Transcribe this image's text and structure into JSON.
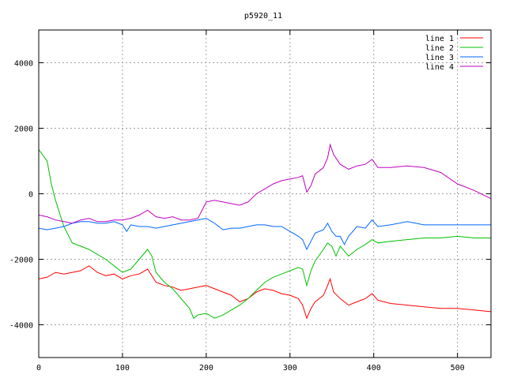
{
  "chart_data": {
    "type": "line",
    "title": "p5920_11",
    "xlabel": "",
    "ylabel": "",
    "xlim": [
      0,
      540
    ],
    "ylim": [
      -5000,
      5000
    ],
    "x_ticks": [
      0,
      100,
      200,
      300,
      400,
      500
    ],
    "y_ticks": [
      -4000,
      -2000,
      0,
      2000,
      4000
    ],
    "grid": true,
    "legend_position": "top-right",
    "series": [
      {
        "name": "line 1",
        "color": "#ff0000",
        "x": [
          0,
          10,
          20,
          30,
          40,
          50,
          60,
          70,
          80,
          90,
          100,
          110,
          120,
          130,
          140,
          150,
          160,
          170,
          180,
          190,
          200,
          210,
          220,
          230,
          240,
          250,
          260,
          270,
          280,
          290,
          300,
          310,
          315,
          320,
          325,
          330,
          340,
          345,
          348,
          352,
          360,
          370,
          380,
          390,
          398,
          405,
          420,
          440,
          460,
          480,
          500,
          520,
          540
        ],
        "y": [
          -2600,
          -2550,
          -2400,
          -2450,
          -2400,
          -2350,
          -2200,
          -2400,
          -2500,
          -2450,
          -2600,
          -2500,
          -2450,
          -2300,
          -2700,
          -2800,
          -2850,
          -2950,
          -2900,
          -2850,
          -2800,
          -2900,
          -3000,
          -3100,
          -3300,
          -3200,
          -3000,
          -2900,
          -2950,
          -3050,
          -3100,
          -3200,
          -3400,
          -3800,
          -3500,
          -3300,
          -3100,
          -2800,
          -2600,
          -3000,
          -3200,
          -3400,
          -3300,
          -3200,
          -3050,
          -3250,
          -3350,
          -3400,
          -3450,
          -3500,
          -3500,
          -3550,
          -3600
        ]
      },
      {
        "name": "line 2",
        "color": "#00c000",
        "x": [
          0,
          10,
          15,
          20,
          30,
          40,
          50,
          60,
          70,
          80,
          90,
          100,
          110,
          120,
          130,
          135,
          140,
          150,
          160,
          170,
          180,
          185,
          190,
          200,
          210,
          220,
          230,
          240,
          250,
          260,
          270,
          280,
          290,
          300,
          310,
          315,
          320,
          325,
          330,
          340,
          345,
          350,
          355,
          360,
          370,
          380,
          390,
          398,
          405,
          420,
          440,
          460,
          480,
          500,
          520,
          540
        ],
        "y": [
          1350,
          1000,
          300,
          -200,
          -1000,
          -1500,
          -1600,
          -1700,
          -1850,
          -2000,
          -2200,
          -2400,
          -2300,
          -2000,
          -1700,
          -1900,
          -2400,
          -2700,
          -2900,
          -3200,
          -3500,
          -3800,
          -3700,
          -3650,
          -3800,
          -3700,
          -3550,
          -3400,
          -3200,
          -2950,
          -2700,
          -2550,
          -2450,
          -2350,
          -2250,
          -2300,
          -2800,
          -2350,
          -2050,
          -1700,
          -1500,
          -1600,
          -1900,
          -1600,
          -1900,
          -1700,
          -1550,
          -1400,
          -1500,
          -1450,
          -1400,
          -1350,
          -1350,
          -1300,
          -1350,
          -1350
        ]
      },
      {
        "name": "line 3",
        "color": "#0066ff",
        "x": [
          0,
          10,
          20,
          30,
          40,
          50,
          60,
          70,
          80,
          90,
          100,
          105,
          110,
          120,
          130,
          140,
          150,
          160,
          170,
          180,
          190,
          200,
          210,
          220,
          230,
          240,
          250,
          260,
          270,
          280,
          290,
          300,
          310,
          315,
          320,
          325,
          330,
          340,
          345,
          350,
          355,
          360,
          365,
          370,
          380,
          390,
          398,
          405,
          420,
          440,
          460,
          480,
          500,
          520,
          540
        ],
        "y": [
          -1050,
          -1100,
          -1050,
          -1000,
          -900,
          -850,
          -850,
          -900,
          -900,
          -850,
          -950,
          -1150,
          -950,
          -1000,
          -1000,
          -1050,
          -1000,
          -950,
          -900,
          -850,
          -800,
          -750,
          -900,
          -1100,
          -1050,
          -1050,
          -1000,
          -950,
          -950,
          -1000,
          -1000,
          -1150,
          -1300,
          -1400,
          -1700,
          -1450,
          -1200,
          -1100,
          -900,
          -1150,
          -1300,
          -1300,
          -1550,
          -1300,
          -1000,
          -1050,
          -800,
          -1000,
          -950,
          -850,
          -950,
          -950,
          -950,
          -950,
          -950
        ]
      },
      {
        "name": "line 4",
        "color": "#c000c0",
        "x": [
          0,
          10,
          20,
          30,
          40,
          50,
          60,
          70,
          80,
          90,
          100,
          110,
          120,
          130,
          140,
          150,
          160,
          170,
          180,
          190,
          200,
          210,
          220,
          230,
          240,
          250,
          260,
          270,
          280,
          290,
          300,
          310,
          315,
          320,
          325,
          330,
          340,
          345,
          348,
          352,
          360,
          370,
          380,
          390,
          398,
          405,
          420,
          440,
          460,
          480,
          500,
          520,
          540
        ],
        "y": [
          -650,
          -700,
          -800,
          -850,
          -900,
          -800,
          -750,
          -850,
          -850,
          -800,
          -800,
          -750,
          -650,
          -500,
          -700,
          -750,
          -700,
          -800,
          -800,
          -750,
          -250,
          -200,
          -250,
          -300,
          -350,
          -250,
          0,
          150,
          300,
          400,
          450,
          500,
          550,
          50,
          250,
          600,
          800,
          1100,
          1500,
          1200,
          900,
          750,
          850,
          900,
          1050,
          800,
          800,
          850,
          800,
          650,
          300,
          100,
          -150
        ]
      }
    ]
  }
}
